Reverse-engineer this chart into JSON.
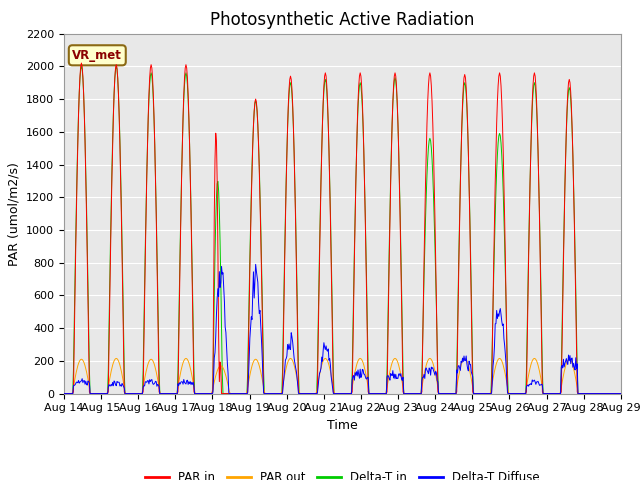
{
  "title": "Photosynthetic Active Radiation",
  "ylabel": "PAR (umol/m2/s)",
  "xlabel": "Time",
  "annotation": "VR_met",
  "ylim": [
    0,
    2200
  ],
  "xtick_labels": [
    "Aug 14",
    "Aug 15",
    "Aug 16",
    "Aug 17",
    "Aug 18",
    "Aug 19",
    "Aug 20",
    "Aug 21",
    "Aug 22",
    "Aug 23",
    "Aug 24",
    "Aug 25",
    "Aug 26",
    "Aug 27",
    "Aug 28",
    "Aug 29"
  ],
  "colors": {
    "PAR_in": "#ff0000",
    "PAR_out": "#ffa500",
    "Delta_T_in": "#00cc00",
    "Delta_T_Diffuse": "#0000ff"
  },
  "legend_labels": [
    "PAR in",
    "PAR out",
    "Delta-T in",
    "Delta-T Diffuse"
  ],
  "bg_color": "#e8e8e8",
  "fig_bg": "#ffffff",
  "grid_color": "#ffffff",
  "title_fontsize": 12,
  "label_fontsize": 9,
  "tick_fontsize": 8
}
